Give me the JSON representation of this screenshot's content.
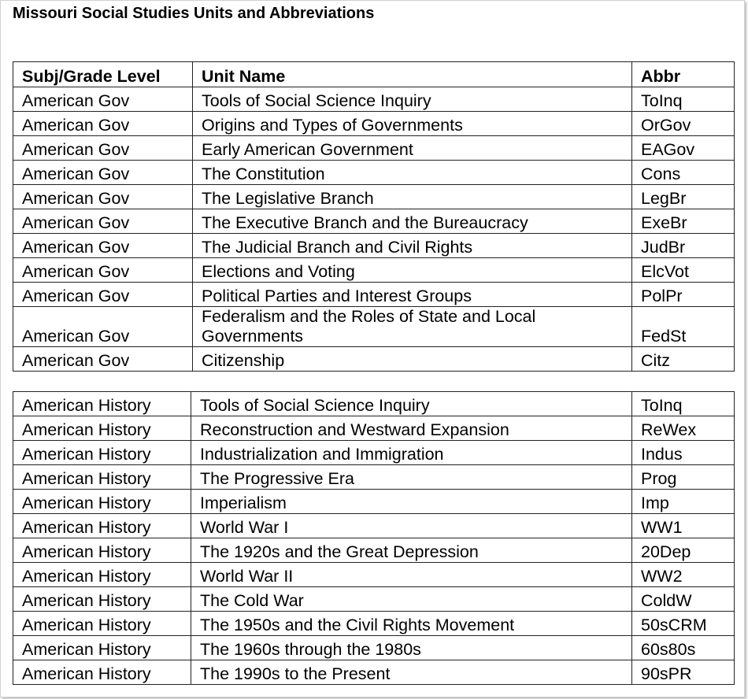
{
  "title": "Missouri Social Studies Units and Abbreviations",
  "headers": [
    "Subj/Grade Level",
    "Unit Name",
    "Abbr"
  ],
  "gov_rows": [
    [
      "American Gov",
      "Tools of Social Science Inquiry",
      "ToInq"
    ],
    [
      "American Gov",
      "Origins and Types of Governments",
      "OrGov"
    ],
    [
      "American Gov",
      "Early American Government",
      "EAGov"
    ],
    [
      "American Gov",
      "The Constitution",
      "Cons"
    ],
    [
      "American Gov",
      "The Legislative Branch",
      "LegBr"
    ],
    [
      "American Gov",
      "The Executive Branch and the Bureaucracy",
      "ExeBr"
    ],
    [
      "American Gov",
      "The Judicial Branch and Civil Rights",
      "JudBr"
    ],
    [
      "American Gov",
      "Elections and Voting",
      "ElcVot"
    ],
    [
      "American Gov",
      "Political Parties and Interest Groups",
      "PolPr"
    ],
    [
      "American Gov",
      "Federalism and the Roles of State and Local Governments",
      "FedSt"
    ],
    [
      "American Gov",
      "Citizenship",
      "Citz"
    ]
  ],
  "history_rows": [
    [
      "American History",
      "Tools of Social Science Inquiry",
      "ToInq"
    ],
    [
      "American History",
      "Reconstruction and Westward Expansion",
      "ReWex"
    ],
    [
      "American History",
      "Industrialization and Immigration",
      "Indus"
    ],
    [
      "American History",
      "The Progressive Era",
      "Prog"
    ],
    [
      "American History",
      "Imperialism",
      "Imp"
    ],
    [
      "American History",
      "World War I",
      "WW1"
    ],
    [
      "American History",
      "The 1920s and the Great Depression",
      "20Dep"
    ],
    [
      "American History",
      "World War II",
      "WW2"
    ],
    [
      "American History",
      "The Cold War",
      "ColdW"
    ],
    [
      "American History",
      "The 1950s and the Civil Rights Movement",
      "50sCRM"
    ],
    [
      "American History",
      "The 1960s through the 1980s",
      "60s80s"
    ],
    [
      "American History",
      "The 1990s to the Present",
      "90sPR"
    ]
  ]
}
